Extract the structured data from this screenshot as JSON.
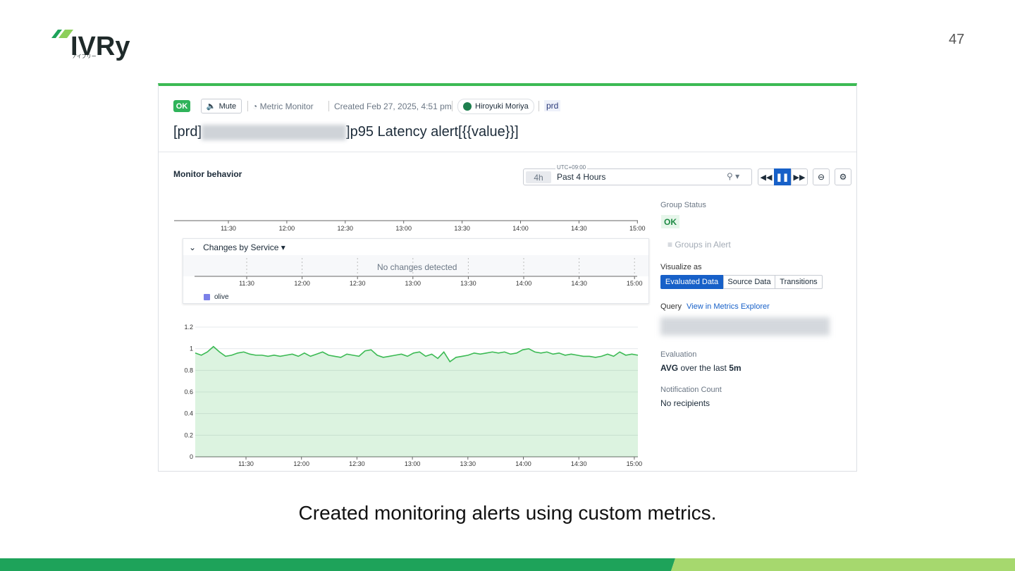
{
  "slide": {
    "logo": "IVRy",
    "logo_kana": "アイブリー",
    "page_number": "47",
    "caption": "Created monitoring alerts using custom metrics."
  },
  "monitor": {
    "status": "OK",
    "mute": "Mute",
    "monitor_type": "Metric Monitor",
    "created": "Created Feb 27, 2025, 4:51 pm",
    "author": "Hiroyuki Moriya",
    "tag": "prd",
    "title_prefix": "[prd]",
    "title_suffix": "]p95 Latency alert[{{value}}]",
    "section": "Monitor behavior",
    "timezone": "UTC+09:00",
    "range_short": "4h",
    "range": "Past 4 Hours",
    "time_ticks": [
      "11:30",
      "12:00",
      "12:30",
      "13:00",
      "13:30",
      "14:00",
      "14:30",
      "15:00"
    ],
    "changes_title": "Changes by Service",
    "no_changes": "No changes detected",
    "legend": "olive",
    "side": {
      "group_status_label": "Group Status",
      "group_status": "OK",
      "groups_in_alert": "Groups in Alert",
      "visualize_label": "Visualize as",
      "visualize_options": [
        "Evaluated Data",
        "Source Data",
        "Transitions"
      ],
      "query_label": "Query",
      "query_link": "View in Metrics Explorer",
      "evaluation_label": "Evaluation",
      "evaluation_agg": "AVG",
      "evaluation_text": "over the last",
      "evaluation_window": "5m",
      "notification_label": "Notification Count",
      "notification_text": "No recipients"
    }
  },
  "chart_data": {
    "type": "area",
    "color": "#3cba54",
    "ylim": [
      0,
      1.2
    ],
    "yticks": [
      0,
      0.2,
      0.4,
      0.6,
      0.8,
      1,
      1.2
    ],
    "grid": true,
    "values": [
      0.96,
      0.94,
      0.97,
      1.02,
      0.97,
      0.93,
      0.94,
      0.96,
      0.97,
      0.95,
      0.94,
      0.94,
      0.93,
      0.94,
      0.93,
      0.94,
      0.95,
      0.93,
      0.96,
      0.93,
      0.95,
      0.97,
      0.94,
      0.93,
      0.92,
      0.95,
      0.94,
      0.93,
      0.98,
      0.99,
      0.94,
      0.92,
      0.93,
      0.94,
      0.95,
      0.93,
      0.96,
      0.97,
      0.93,
      0.95,
      0.91,
      0.97,
      0.88,
      0.92,
      0.93,
      0.94,
      0.96,
      0.95,
      0.96,
      0.97,
      0.96,
      0.97,
      0.95,
      0.96,
      0.99,
      1.0,
      0.97,
      0.96,
      0.97,
      0.95,
      0.96,
      0.94,
      0.95,
      0.94,
      0.93,
      0.93,
      0.92,
      0.93,
      0.95,
      0.93,
      0.97,
      0.94,
      0.95,
      0.94
    ]
  }
}
